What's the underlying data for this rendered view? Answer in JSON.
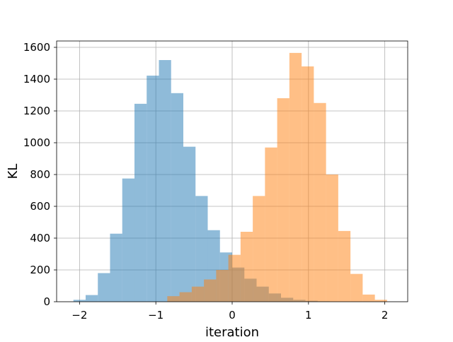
{
  "chart_data": {
    "type": "bar",
    "title": "",
    "xlabel": "iteration",
    "ylabel": "KL",
    "xlim": [
      -2.3,
      2.3
    ],
    "ylim": [
      0,
      1640
    ],
    "grid": true,
    "legend": "none",
    "x_ticks": [
      -2,
      -1,
      0,
      1,
      2
    ],
    "x_tick_labels": [
      "−2",
      "−1",
      "0",
      "1",
      "2"
    ],
    "y_ticks": [
      0,
      200,
      400,
      600,
      800,
      1000,
      1200,
      1400,
      1600
    ],
    "y_tick_labels": [
      "0",
      "200",
      "400",
      "600",
      "800",
      "1000",
      "1200",
      "1400",
      "1600"
    ],
    "series": [
      {
        "color": "#1f77b4",
        "opacity": 0.5,
        "bin_edges": [
          -2.08,
          -1.92,
          -1.76,
          -1.6,
          -1.44,
          -1.28,
          -1.12,
          -0.96,
          -0.8,
          -0.64,
          -0.48,
          -0.32,
          -0.16,
          0.0,
          0.16,
          0.32,
          0.48,
          0.64,
          0.8,
          0.96,
          1.12,
          1.28
        ],
        "counts": [
          12,
          42,
          180,
          428,
          775,
          1245,
          1422,
          1520,
          1312,
          975,
          665,
          450,
          310,
          215,
          145,
          95,
          52,
          25,
          12,
          6,
          3
        ]
      },
      {
        "color": "#ff7f0e",
        "opacity": 0.5,
        "bin_edges": [
          -0.85,
          -0.69,
          -0.53,
          -0.37,
          -0.21,
          -0.05,
          0.11,
          0.27,
          0.43,
          0.59,
          0.75,
          0.91,
          1.07,
          1.23,
          1.39,
          1.55,
          1.71,
          1.87,
          2.03
        ],
        "counts": [
          35,
          60,
          95,
          140,
          200,
          295,
          440,
          665,
          970,
          1280,
          1565,
          1480,
          1250,
          800,
          445,
          175,
          45,
          12
        ]
      }
    ]
  }
}
